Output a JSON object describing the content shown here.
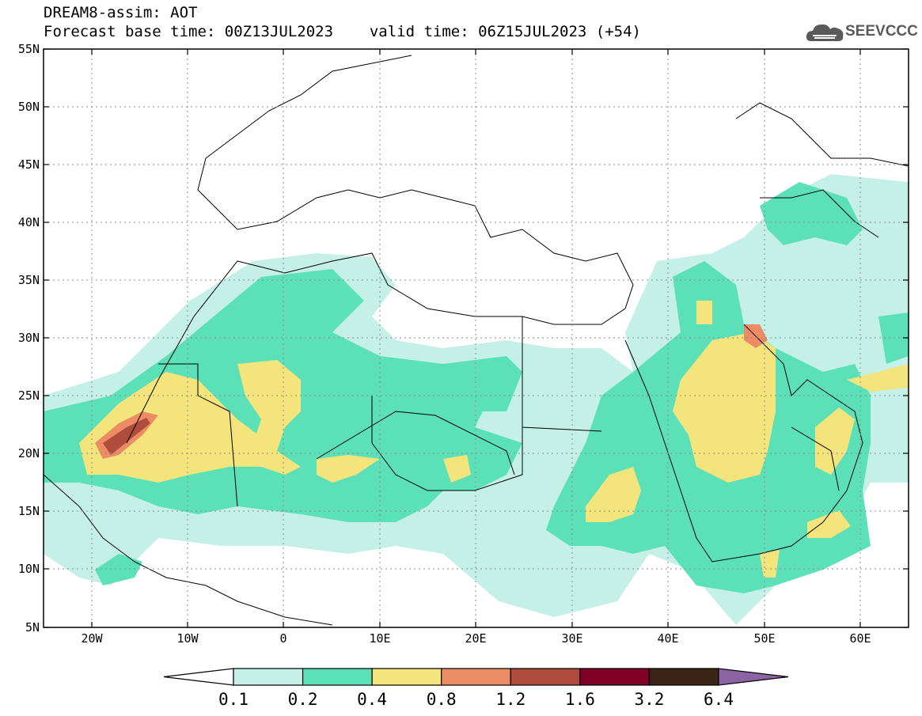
{
  "header": {
    "title": "DREAM8-assim: AOT",
    "base_time": "Forecast base time: 00Z13JUL2023",
    "valid_time": "valid time: 06Z15JUL2023 (+54)"
  },
  "logo": {
    "text": "SEEVCCC",
    "icon": "cloud-icon"
  },
  "map": {
    "projection": "lat-lon",
    "lon_range": [
      -25,
      65
    ],
    "lat_range": [
      5,
      55
    ],
    "lat_labels": [
      "55N",
      "50N",
      "45N",
      "40N",
      "35N",
      "30N",
      "25N",
      "20N",
      "15N",
      "10N",
      "5N"
    ],
    "lon_labels": [
      "20W",
      "10W",
      "0",
      "10E",
      "20E",
      "30E",
      "40E",
      "50E",
      "60E"
    ]
  },
  "colorbar": {
    "levels": [
      "0.1",
      "0.2",
      "0.4",
      "0.8",
      "1.2",
      "1.6",
      "3.2",
      "6.4"
    ],
    "colors": [
      "#c4f0e8",
      "#5ce0b8",
      "#f4e47c",
      "#ec8c64",
      "#b04c3c",
      "#800028",
      "#3c2414",
      "#8c64a4"
    ],
    "below_color": "#ffffff"
  }
}
